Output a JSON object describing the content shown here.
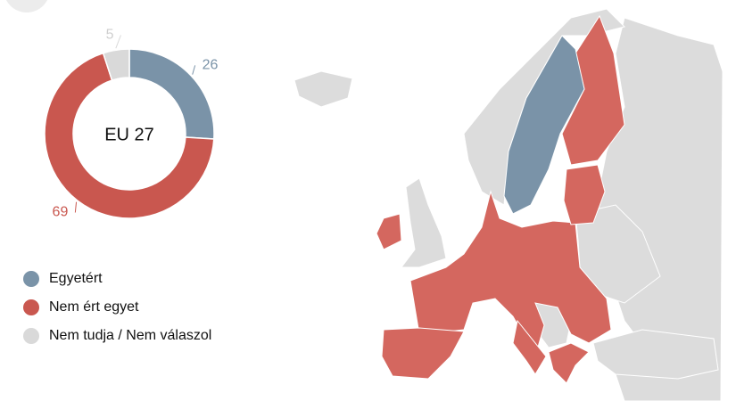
{
  "chart_data": {
    "type": "pie",
    "donut": true,
    "center_label": "EU 27",
    "categories": [
      "Egyetért",
      "Nem ért egyet",
      "Nem tudja / Nem válaszol"
    ],
    "values": [
      26,
      69,
      5
    ],
    "colors": [
      "#7a93a8",
      "#c9574f",
      "#d9d9d9"
    ]
  }
}
